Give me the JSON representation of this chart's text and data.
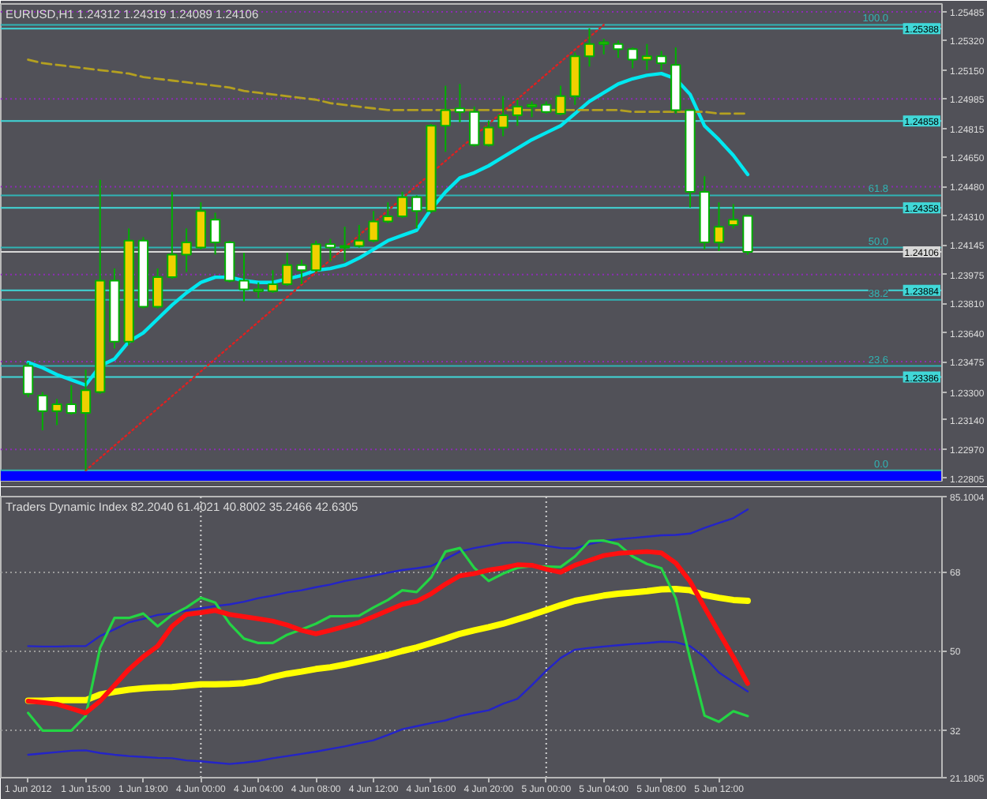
{
  "chart_data": [
    {
      "type": "candlestick",
      "title": "EURUSD,H1 1.24312 1.24319 1.24089 1.24106",
      "tick_labels": "y",
      "categories": [
        null,
        null,
        null,
        null,
        null,
        null,
        null,
        null,
        null,
        null,
        null,
        null,
        null,
        null,
        null,
        null,
        null,
        null,
        null,
        null,
        null,
        null,
        null,
        null,
        null,
        null,
        null,
        null,
        null,
        null,
        null,
        null,
        null,
        null,
        null,
        null,
        null,
        null,
        null,
        null,
        null,
        null,
        null,
        null,
        null,
        null,
        null,
        null,
        null,
        null,
        null
      ],
      "ohlc": [
        [
          1.2345,
          1.2347,
          1.2327,
          1.2329
        ],
        [
          1.2328,
          1.233,
          1.2308,
          1.2319
        ],
        [
          1.2319,
          1.2326,
          1.2311,
          1.2323
        ],
        [
          1.2323,
          1.2334,
          1.2317,
          1.2318
        ],
        [
          1.2318,
          1.2343,
          1.2285,
          1.2331
        ],
        [
          1.233,
          1.2452,
          1.2329,
          1.2394
        ],
        [
          1.2394,
          1.2401,
          1.2355,
          1.2359
        ],
        [
          1.2359,
          1.2424,
          1.2357,
          1.2417
        ],
        [
          1.2417,
          1.2419,
          1.2378,
          1.2379
        ],
        [
          1.2379,
          1.2401,
          1.2378,
          1.2396
        ],
        [
          1.2396,
          1.2445,
          1.2395,
          1.2409
        ],
        [
          1.2409,
          1.2424,
          1.2399,
          1.2416
        ],
        [
          1.2413,
          1.2439,
          1.2412,
          1.2434
        ],
        [
          1.2429,
          1.2433,
          1.2409,
          1.2416
        ],
        [
          1.2416,
          1.2417,
          1.2393,
          1.2394
        ],
        [
          1.2394,
          1.241,
          1.2382,
          1.2389
        ],
        [
          1.2389,
          1.2393,
          1.2384,
          1.2388
        ],
        [
          1.2388,
          1.24,
          1.2387,
          1.2392
        ],
        [
          1.2392,
          1.241,
          1.2391,
          1.2403
        ],
        [
          1.2403,
          1.2406,
          1.2392,
          1.24
        ],
        [
          1.24,
          1.2417,
          1.2399,
          1.2415
        ],
        [
          1.2415,
          1.2418,
          1.2405,
          1.2413
        ],
        [
          1.2413,
          1.2425,
          1.2405,
          1.2414
        ],
        [
          1.2414,
          1.2426,
          1.2413,
          1.2417
        ],
        [
          1.2417,
          1.2434,
          1.2416,
          1.2428
        ],
        [
          1.2428,
          1.2439,
          1.2427,
          1.2431
        ],
        [
          1.2431,
          1.2445,
          1.243,
          1.2442
        ],
        [
          1.2442,
          1.2443,
          1.2424,
          1.2434
        ],
        [
          1.2434,
          1.2484,
          1.2433,
          1.2483
        ],
        [
          1.2483,
          1.2506,
          1.2468,
          1.2492
        ],
        [
          1.2493,
          1.2507,
          1.2485,
          1.2491
        ],
        [
          1.2491,
          1.2494,
          1.2471,
          1.2472
        ],
        [
          1.2472,
          1.2486,
          1.2471,
          1.2482
        ],
        [
          1.2482,
          1.25,
          1.2477,
          1.2489
        ],
        [
          1.2489,
          1.2498,
          1.2483,
          1.2494
        ],
        [
          1.2494,
          1.2497,
          1.2488,
          1.2495
        ],
        [
          1.2495,
          1.2497,
          1.249,
          1.2491
        ],
        [
          1.249,
          1.2506,
          1.2489,
          1.25
        ],
        [
          1.25,
          1.2525,
          1.2495,
          1.2523
        ],
        [
          1.2523,
          1.2539,
          1.2517,
          1.253
        ],
        [
          1.253,
          1.2533,
          1.2524,
          1.2531
        ],
        [
          1.253,
          1.2532,
          1.2522,
          1.2527
        ],
        [
          1.2527,
          1.2528,
          1.2516,
          1.2521
        ],
        [
          1.2521,
          1.253,
          1.2515,
          1.2523
        ],
        [
          1.2523,
          1.2526,
          1.2515,
          1.2519
        ],
        [
          1.2518,
          1.2528,
          1.249,
          1.2492
        ],
        [
          1.2492,
          1.2492,
          1.2436,
          1.2445
        ],
        [
          1.2445,
          1.2454,
          1.2412,
          1.2416
        ],
        [
          1.2416,
          1.2439,
          1.2411,
          1.2425
        ],
        [
          1.2426,
          1.2438,
          1.2424,
          1.2429
        ],
        [
          1.24312,
          1.24319,
          1.24089,
          1.24106
        ]
      ],
      "color": "#00b000",
      "colors": [
        "#ffffff",
        "#ffffff",
        "#f0d000",
        "#ffffff",
        "#f0d000",
        "#f0d000",
        "#ffffff",
        "#f0d000",
        "#ffffff",
        "#f0d000",
        "#f0d000",
        "#f0d000",
        "#f0d000",
        "#ffffff",
        "#ffffff",
        "#ffffff",
        "#ffffff",
        "#f0d000",
        "#f0d000",
        "#ffffff",
        "#f0d000",
        "#ffffff",
        "#f0d000",
        "#f0d000",
        "#f0d000",
        "#f0d000",
        "#f0d000",
        "#ffffff",
        "#f0d000",
        "#f0d000",
        "#ffffff",
        "#ffffff",
        "#f0d000",
        "#f0d000",
        "#f0d000",
        "#f0d000",
        "#ffffff",
        "#f0d000",
        "#f0d000",
        "#f0d000",
        "#f0d000",
        "#ffffff",
        "#ffffff",
        "#f0d000",
        "#ffffff",
        "#ffffff",
        "#ffffff",
        "#ffffff",
        "#f0d000",
        "#f0d000",
        "#ffffff"
      ],
      "series": [
        {
          "type": "line",
          "color": "#00e8f0",
          "values": [
            1.2347,
            1.2344,
            1.234,
            1.2337,
            1.2334,
            1.2345,
            1.2349,
            1.2359,
            1.2364,
            1.2372,
            1.238,
            1.2387,
            1.2393,
            1.2396,
            1.2396,
            1.2394,
            1.2393,
            1.2393,
            1.2395,
            1.2397,
            1.24,
            1.2401,
            1.2403,
            1.2407,
            1.2412,
            1.2417,
            1.242,
            1.2423,
            1.2435,
            1.2445,
            1.2453,
            1.2456,
            1.246,
            1.2465,
            1.247,
            1.2475,
            1.2479,
            1.2483,
            1.249,
            1.2497,
            1.2502,
            1.2507,
            1.251,
            1.2512,
            1.2513,
            1.251,
            1.2501,
            1.2483,
            1.2475,
            1.2466,
            1.2455
          ]
        },
        {
          "type": "line",
          "color": "#b4a020",
          "line_style": "dashed",
          "values": [
            1.2521,
            1.2519,
            1.2518,
            1.2517,
            1.2516,
            1.2515,
            1.2514,
            1.2513,
            1.2511,
            1.251,
            1.2509,
            1.2508,
            1.2507,
            1.2506,
            1.2505,
            1.2503,
            1.2502,
            1.2501,
            1.25,
            1.2499,
            1.2498,
            1.2496,
            1.2495,
            1.2494,
            1.2493,
            1.2492,
            1.2492,
            1.2492,
            1.2492,
            1.2492,
            1.2492,
            1.2492,
            1.2492,
            1.2492,
            1.2492,
            1.2492,
            1.2492,
            1.2492,
            1.2492,
            1.2492,
            1.2492,
            1.2492,
            1.2491,
            1.2491,
            1.2491,
            1.2491,
            1.2491,
            1.2491,
            1.249,
            1.249,
            1.249
          ]
        },
        {
          "type": "line",
          "color": "#e02020",
          "line_style": "dotted",
          "values": [
            null,
            null,
            null,
            null,
            1.2285,
            null,
            null,
            null,
            null,
            null,
            null,
            null,
            null,
            null,
            null,
            null,
            null,
            null,
            null,
            null,
            null,
            null,
            null,
            null,
            null,
            null,
            null,
            null,
            null,
            null,
            null,
            null,
            null,
            null,
            null,
            null,
            null,
            null,
            null,
            null,
            1.2541,
            null,
            null,
            null,
            null,
            null,
            null,
            null,
            null,
            null,
            null
          ]
        }
      ],
      "ylim": [
        1.2279,
        1.2553
      ],
      "yticks": [
        1.25485,
        {
          "value": 1.2532,
          "label": "1.25320"
        },
        {
          "value": 1.2515,
          "label": "1.25150"
        },
        1.24985,
        1.24815,
        {
          "value": 1.2465,
          "label": "1.24650"
        },
        {
          "value": 1.2448,
          "label": "1.24480"
        },
        {
          "value": 1.2431,
          "label": "1.24310"
        },
        1.24145,
        1.23975,
        {
          "value": 1.2381,
          "label": "1.23810"
        },
        {
          "value": 1.2364,
          "label": "1.23640"
        },
        1.23475,
        {
          "value": 1.233,
          "label": "1.23300"
        },
        {
          "value": 1.2314,
          "label": "1.23140"
        },
        {
          "value": 1.2297,
          "label": "1.22970"
        },
        1.22805
      ],
      "annotations": [
        {
          "text": "100.0",
          "y": 1.2541
        },
        {
          "text": "61.8",
          "y": 1.2443
        },
        {
          "text": "50.0",
          "y": 1.2413
        },
        {
          "text": "38.2",
          "y": 1.2383
        },
        {
          "text": "23.6",
          "y": 1.2345
        },
        {
          "text": "0.0",
          "y": 1.2285
        }
      ],
      "ref_lines": [
        {
          "axis": "y",
          "value": 1.2541,
          "color": "#30b4b4"
        },
        {
          "axis": "y",
          "value": 1.2443,
          "color": "#30b4b4"
        },
        {
          "axis": "y",
          "value": 1.2413,
          "color": "#30b4b4"
        },
        {
          "axis": "y",
          "value": 1.2383,
          "color": "#30b4b4"
        },
        {
          "axis": "y",
          "value": 1.2345,
          "color": "#30b4b4"
        },
        {
          "axis": "y",
          "value": 1.2285,
          "color": "#30b4b4"
        },
        {
          "axis": "y",
          "value": 1.25388,
          "label": "1.25388",
          "color": "#40d8d8"
        },
        {
          "axis": "y",
          "value": 1.24858,
          "label": "1.24858",
          "color": "#40d8d8"
        },
        {
          "axis": "y",
          "value": 1.24358,
          "label": "1.24358",
          "color": "#40d8d8"
        },
        {
          "axis": "y",
          "value": 1.23884,
          "label": "1.23884",
          "color": "#40d8d8"
        },
        {
          "axis": "y",
          "value": 1.23386,
          "label": "1.23386",
          "color": "#40d8d8"
        },
        {
          "axis": "y",
          "value": 1.25485,
          "color": "#8c2cb4",
          "line_style": "dotted"
        },
        {
          "axis": "y",
          "value": 1.24985,
          "color": "#8c2cb4",
          "line_style": "dotted"
        },
        {
          "axis": "y",
          "value": 1.2448,
          "color": "#8c2cb4",
          "line_style": "dotted"
        },
        {
          "axis": "y",
          "value": 1.23975,
          "color": "#8c2cb4",
          "line_style": "dotted"
        },
        {
          "axis": "y",
          "value": 1.23475,
          "color": "#8c2cb4",
          "line_style": "dotted"
        },
        {
          "axis": "y",
          "value": 1.2297,
          "color": "#8c2cb4",
          "line_style": "dotted"
        },
        {
          "axis": "y",
          "value": 1.24106,
          "label": "1.24106",
          "color": "#d8d8d8"
        }
      ],
      "bands": [
        {
          "axis": "y",
          "from": 1.2279,
          "to": 1.2285,
          "color": "#0000ff"
        }
      ]
    },
    {
      "type": "line",
      "title": "Traders Dynamic Index 82.2040 61.4021 40.8002 35.2466 42.6305",
      "categories": [
        "1 Jun 2012",
        null,
        null,
        null,
        "1 Jun 15:00",
        null,
        null,
        null,
        "1 Jun 19:00",
        null,
        null,
        null,
        "4 Jun 00:00",
        null,
        null,
        null,
        "4 Jun 04:00",
        null,
        null,
        null,
        "4 Jun 08:00",
        null,
        null,
        null,
        "4 Jun 12:00",
        null,
        null,
        null,
        "4 Jun 16:00",
        null,
        null,
        null,
        "4 Jun 20:00",
        null,
        null,
        null,
        "5 Jun 00:00",
        null,
        null,
        null,
        "5 Jun 04:00",
        null,
        null,
        null,
        "5 Jun 08:00",
        null,
        null,
        null,
        "5 Jun 12:00",
        null,
        null
      ],
      "series": [
        {
          "color": "#2424c8",
          "values": [
            51.1,
            51.0,
            51.0,
            51.1,
            51.1,
            53.4,
            54.9,
            56.5,
            57.3,
            58.2,
            58.6,
            59.2,
            59.7,
            60.2,
            60.6,
            61.2,
            62.0,
            62.6,
            63.3,
            63.8,
            64.5,
            65.1,
            65.9,
            66.5,
            67.1,
            67.8,
            68.4,
            68.8,
            69.3,
            70.9,
            72.6,
            73.4,
            74.0,
            74.6,
            74.7,
            74.4,
            73.9,
            73.4,
            73.3,
            74.3,
            75.0,
            75.4,
            75.7,
            76.0,
            76.3,
            76.4,
            76.7,
            78.0,
            79.1,
            80.2,
            82.2
          ]
        },
        {
          "color": "#2424c8",
          "values": [
            26.4,
            26.7,
            27.0,
            27.3,
            27.4,
            26.8,
            26.4,
            26.1,
            25.9,
            25.7,
            25.6,
            25.1,
            24.9,
            24.6,
            24.3,
            24.6,
            25.0,
            25.6,
            26.1,
            26.6,
            27.1,
            27.7,
            28.3,
            29.0,
            29.7,
            30.9,
            32.2,
            32.9,
            33.6,
            34.2,
            35.2,
            35.9,
            36.5,
            38.0,
            39.1,
            42.2,
            45.5,
            48.4,
            50.3,
            50.7,
            51.0,
            51.3,
            51.6,
            51.8,
            52.1,
            52.0,
            51.1,
            48.6,
            45.1,
            42.9,
            40.8
          ]
        },
        {
          "color": "#ffff00",
          "values": [
            38.7,
            38.7,
            38.8,
            38.8,
            38.8,
            40.1,
            40.7,
            41.2,
            41.5,
            41.7,
            41.8,
            42.1,
            42.4,
            42.4,
            42.5,
            42.7,
            43.2,
            44.1,
            44.8,
            45.3,
            45.9,
            46.3,
            46.9,
            47.6,
            48.3,
            49.1,
            50.0,
            50.8,
            51.8,
            52.8,
            53.9,
            54.7,
            55.4,
            56.2,
            57.2,
            58.2,
            59.3,
            60.4,
            61.4,
            62.0,
            62.6,
            63.0,
            63.3,
            63.6,
            64.0,
            64.1,
            63.8,
            62.7,
            62.1,
            61.6,
            61.4
          ]
        },
        {
          "color": "#24d444",
          "values": [
            35.9,
            31.9,
            31.9,
            31.9,
            35.2,
            50.7,
            57.5,
            57.5,
            58.5,
            55.6,
            58.2,
            59.9,
            62.1,
            61.0,
            56.2,
            52.8,
            51.8,
            51.8,
            53.7,
            54.9,
            56.2,
            57.9,
            57.9,
            58.0,
            59.9,
            61.6,
            63.8,
            63.4,
            66.7,
            72.6,
            73.4,
            68.9,
            65.9,
            67.6,
            68.9,
            69.3,
            69.2,
            69.1,
            71.5,
            75.0,
            75.1,
            74.3,
            71.5,
            69.8,
            68.8,
            62.0,
            48.2,
            35.3,
            33.9,
            36.3,
            35.2
          ]
        },
        {
          "color": "#ff1010",
          "values": [
            38.6,
            38.3,
            37.9,
            36.9,
            35.9,
            38.6,
            42.2,
            45.8,
            48.7,
            51.1,
            55.6,
            58.3,
            58.7,
            59.2,
            58.3,
            57.8,
            57.3,
            56.8,
            55.9,
            54.7,
            53.9,
            54.7,
            55.6,
            56.5,
            57.8,
            59.2,
            60.6,
            61.3,
            63.0,
            65.2,
            67.1,
            67.6,
            68.4,
            68.9,
            69.6,
            69.5,
            68.6,
            67.9,
            69.5,
            70.6,
            71.7,
            72.2,
            72.4,
            72.6,
            72.3,
            70.0,
            65.8,
            59.9,
            54.2,
            48.6,
            42.6
          ]
        }
      ],
      "ylim": [
        21.1805,
        85.1004
      ],
      "yticks": [
        85.1004,
        68,
        50,
        32,
        21.1805
      ],
      "grid": "y",
      "ref_lines": [
        {
          "axis": "x",
          "value": "4 Jun 00:00",
          "color": "#d0d0d0",
          "line_style": "dotted"
        },
        {
          "axis": "x",
          "value": "5 Jun 00:00",
          "color": "#d0d0d0",
          "line_style": "dotted"
        }
      ]
    }
  ]
}
